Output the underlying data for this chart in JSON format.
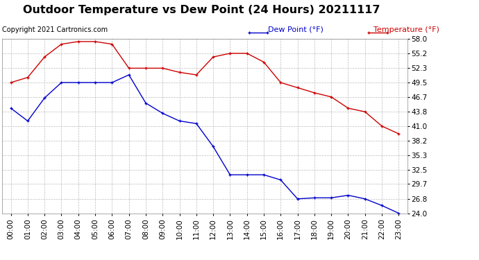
{
  "title": "Outdoor Temperature vs Dew Point (24 Hours) 20211117",
  "copyright": "Copyright 2021 Cartronics.com",
  "legend_dew": "Dew Point (°F)",
  "legend_temp": "Temperature (°F)",
  "x_labels": [
    "00:00",
    "01:00",
    "02:00",
    "03:00",
    "04:00",
    "05:00",
    "06:00",
    "07:00",
    "08:00",
    "09:00",
    "10:00",
    "11:00",
    "12:00",
    "13:00",
    "14:00",
    "15:00",
    "16:00",
    "17:00",
    "18:00",
    "19:00",
    "20:00",
    "21:00",
    "22:00",
    "23:00"
  ],
  "temperature": [
    49.5,
    50.5,
    54.5,
    57.0,
    57.5,
    57.5,
    57.0,
    52.3,
    52.3,
    52.3,
    51.5,
    51.0,
    54.5,
    55.2,
    55.2,
    53.5,
    49.5,
    48.5,
    47.5,
    46.7,
    44.5,
    43.8,
    41.0,
    39.5
  ],
  "dew_point": [
    44.5,
    42.0,
    46.5,
    49.5,
    49.5,
    49.5,
    49.5,
    51.0,
    45.5,
    43.5,
    42.0,
    41.5,
    37.0,
    31.5,
    31.5,
    31.5,
    30.5,
    26.8,
    27.0,
    27.0,
    27.5,
    26.8,
    25.5,
    24.0
  ],
  "temp_color": "#cc0000",
  "dew_color": "#0000cc",
  "bg_color": "#ffffff",
  "grid_color": "#bbbbbb",
  "border_color": "#888888",
  "ylim_min": 24.0,
  "ylim_max": 58.0,
  "yticks": [
    58.0,
    55.2,
    52.3,
    49.5,
    46.7,
    43.8,
    41.0,
    38.2,
    35.3,
    32.5,
    29.7,
    26.8,
    24.0
  ],
  "title_fontsize": 11.5,
  "copyright_fontsize": 7,
  "legend_fontsize": 8,
  "tick_fontsize": 7.5,
  "marker_size": 3.5,
  "line_width": 1.0
}
